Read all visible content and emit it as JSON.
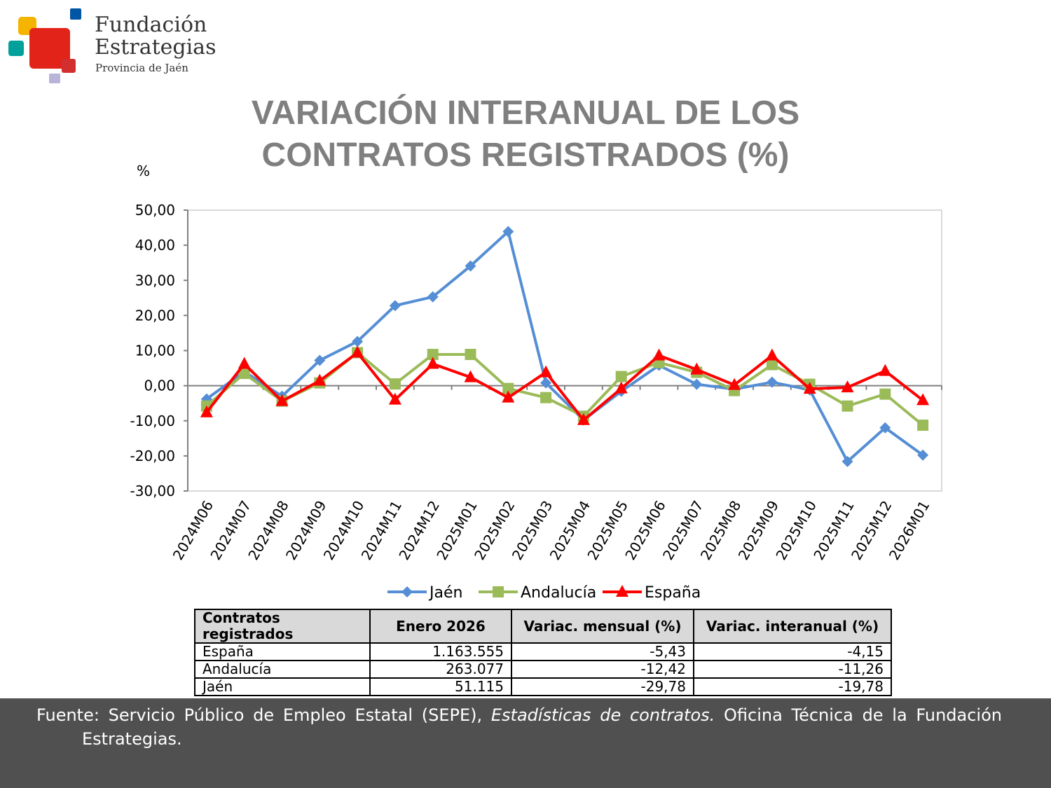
{
  "logo": {
    "line1": "Fundación",
    "line2": "Estrategias",
    "line3": "Provincia de Jaén"
  },
  "title_line1": "VARIACIÓN INTERANUAL DE LOS",
  "title_line2": "CONTRATOS REGISTRADOS (%)",
  "chart_data": {
    "type": "line",
    "ylabel": "%",
    "ylim": [
      -30,
      50
    ],
    "yticks": [
      "50,00",
      "40,00",
      "30,00",
      "20,00",
      "10,00",
      "0,00",
      "-10,00",
      "-20,00",
      "-30,00"
    ],
    "categories": [
      "2024M06",
      "2024M07",
      "2024M08",
      "2024M09",
      "2024M10",
      "2024M11",
      "2024M12",
      "2025M01",
      "2025M02",
      "2025M03",
      "2025M04",
      "2025M05",
      "2025M06",
      "2025M07",
      "2025M08",
      "2025M09",
      "2025M10",
      "2025M11",
      "2025M12",
      "2026M01"
    ],
    "series": [
      {
        "name": "Jaén",
        "color": "#558ed5",
        "marker": "diamond",
        "values": [
          -3.8,
          4.0,
          -3.0,
          7.2,
          12.6,
          22.8,
          25.3,
          34.1,
          43.9,
          0.8,
          -9.8,
          -1.6,
          5.8,
          0.4,
          -1.0,
          1.0,
          -1.2,
          -21.6,
          -12.0,
          -19.78
        ]
      },
      {
        "name": "Andalucía",
        "color": "#9bbb59",
        "marker": "square",
        "values": [
          -5.8,
          3.5,
          -4.4,
          0.8,
          9.4,
          0.5,
          8.9,
          8.9,
          -0.8,
          -3.4,
          -8.7,
          2.6,
          6.6,
          3.8,
          -1.4,
          6.0,
          0.4,
          -5.8,
          -2.4,
          -11.26
        ]
      },
      {
        "name": "España",
        "color": "#ff0000",
        "marker": "triangle",
        "values": [
          -7.6,
          6.2,
          -4.4,
          1.4,
          9.4,
          -4.0,
          6.2,
          2.4,
          -3.4,
          3.8,
          -9.8,
          -0.8,
          8.6,
          4.6,
          0.2,
          8.6,
          -0.9,
          -0.5,
          4.2,
          -4.15
        ]
      }
    ],
    "grid": false,
    "legend": "bottom"
  },
  "table": {
    "headers": [
      "Contratos registrados",
      "Enero 2026",
      "Variac. mensual (%)",
      "Variac. interanual (%)"
    ],
    "rows": [
      [
        "España",
        "1.163.555",
        "-5,43",
        "-4,15"
      ],
      [
        "Andalucía",
        "263.077",
        "-12,42",
        "-11,26"
      ],
      [
        "Jaén",
        "51.115",
        "-29,78",
        "-19,78"
      ]
    ]
  },
  "footer": {
    "prefix": "Fuente: Servicio Público de Empleo Estatal (SEPE), ",
    "italic": "Estadísticas de contratos.",
    "suffix": " Oficina Técnica de la Fundación",
    "line2": "Estrategias."
  }
}
